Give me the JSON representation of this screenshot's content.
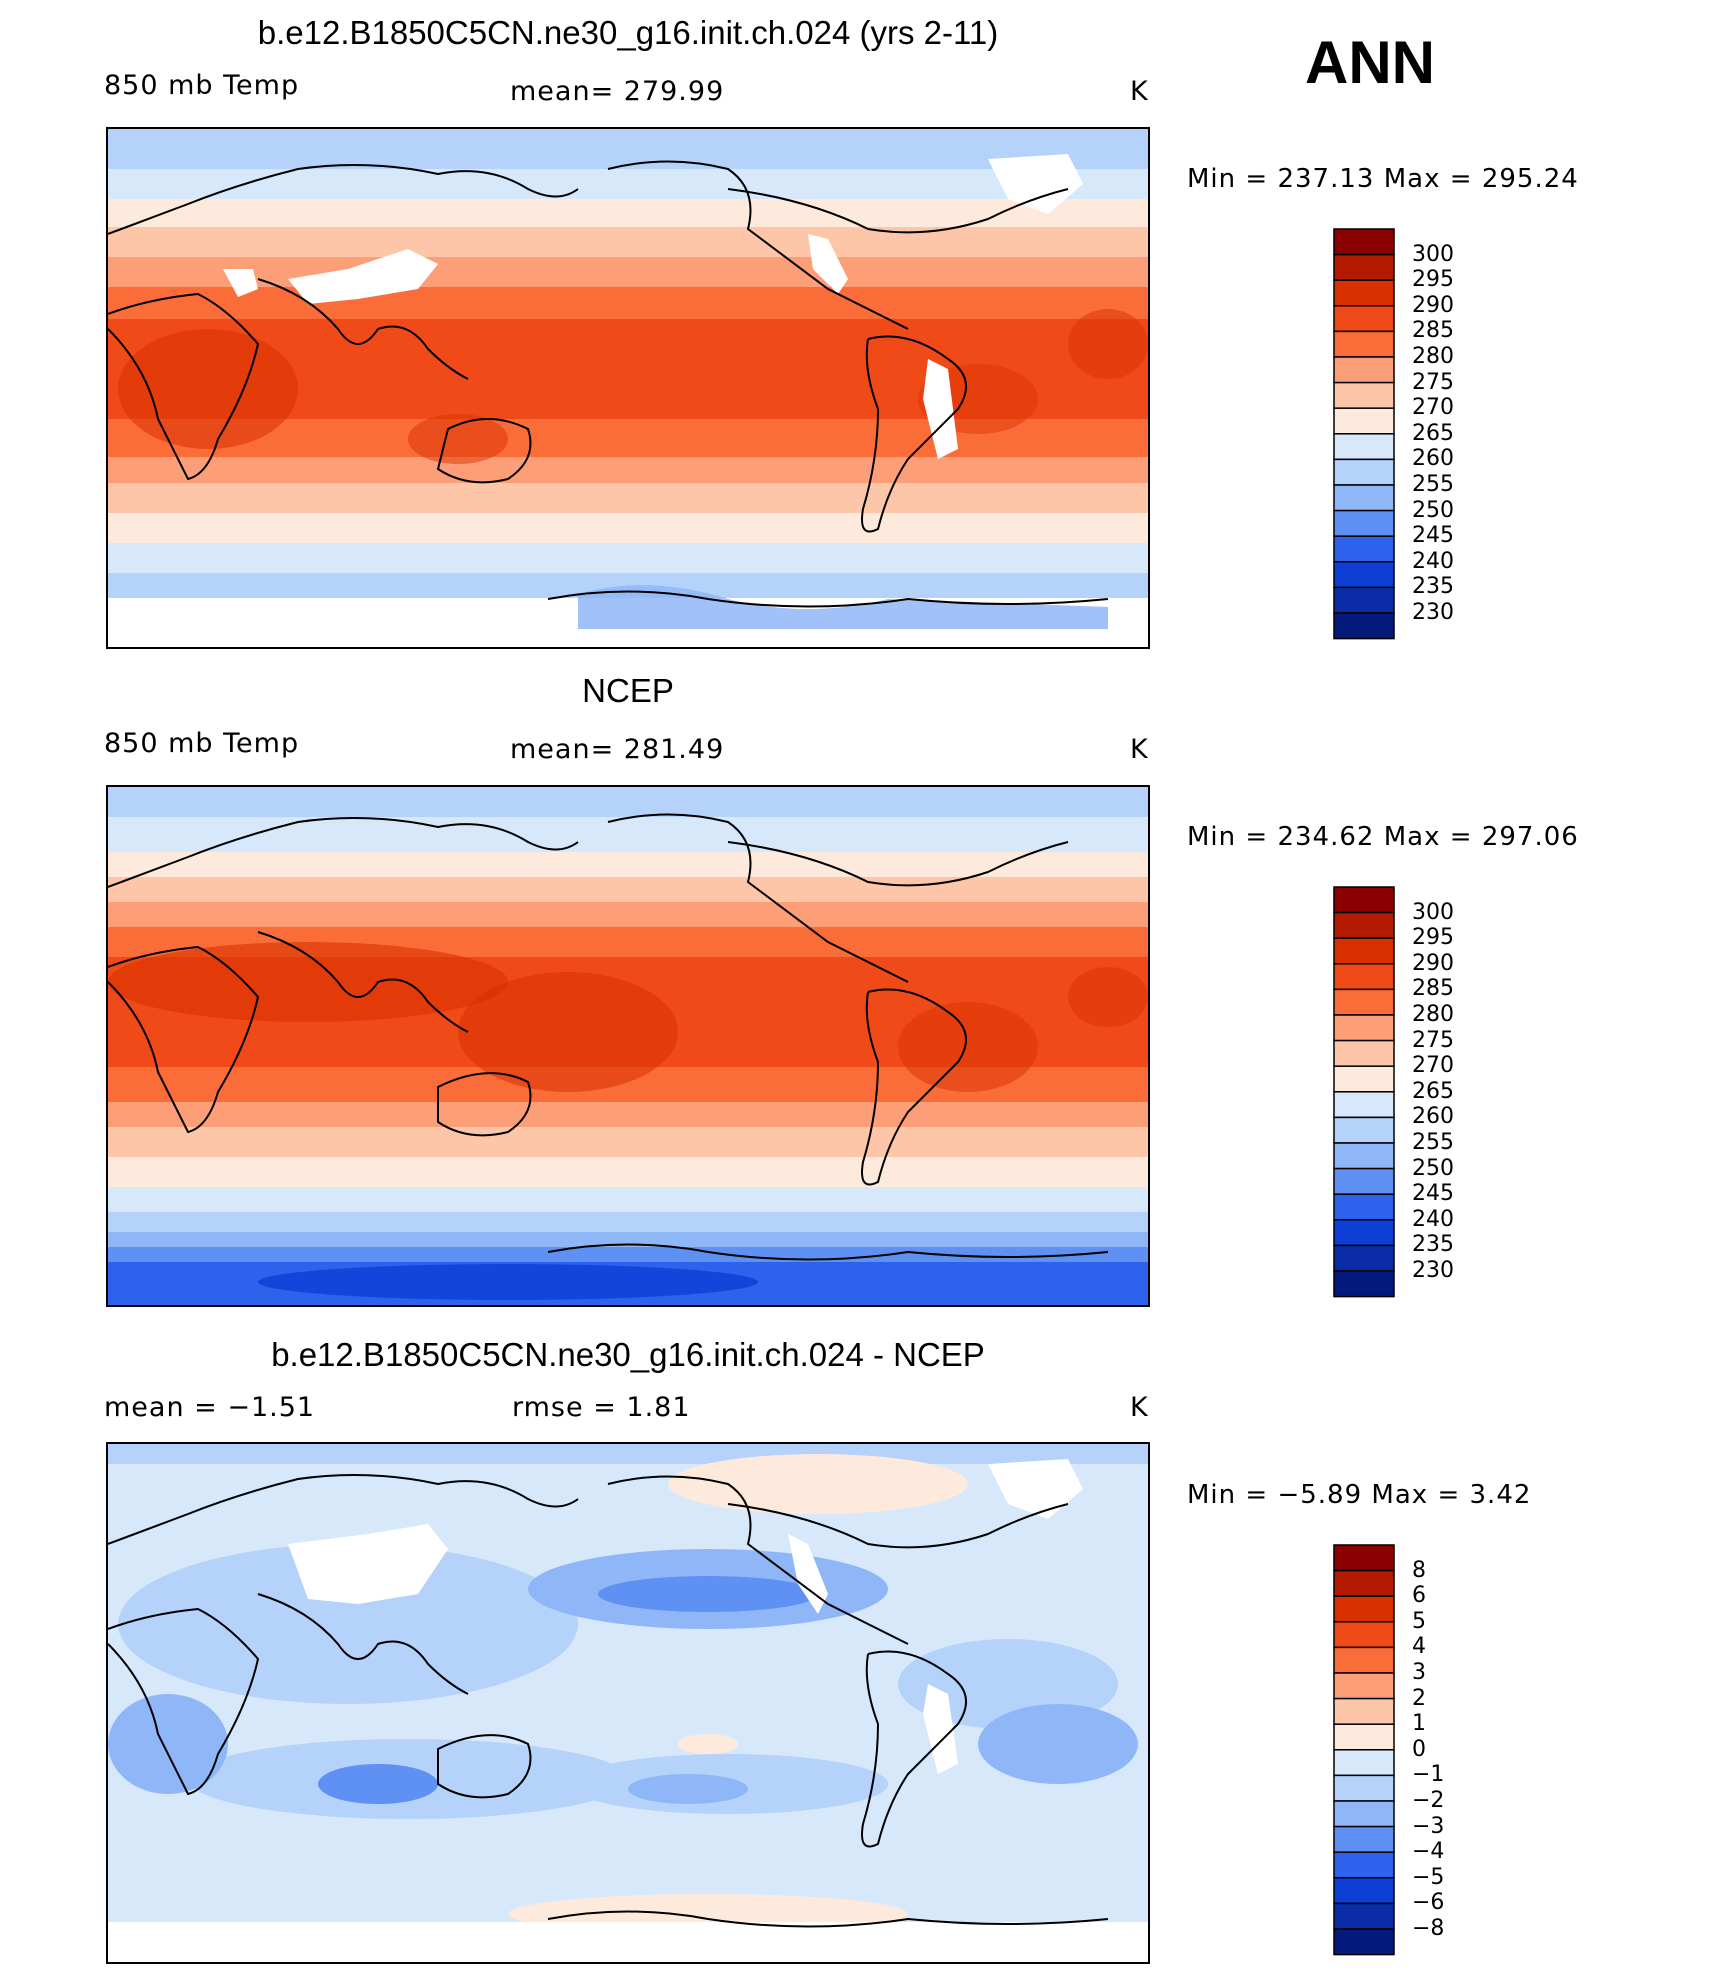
{
  "season": "ANN",
  "panels": [
    {
      "title": "b.e12.B1850C5CN.ne30_g16.init.ch.024 (yrs 2-11)",
      "left_label": "850 mb Temp",
      "center_label": "mean=  279.99",
      "units": "K",
      "min_label": "Min",
      "min_value": "237.13",
      "max_label": "Max",
      "max_value": "295.24",
      "colorbar_levels": [
        "300",
        "295",
        "290",
        "285",
        "280",
        "275",
        "270",
        "265",
        "260",
        "255",
        "250",
        "245",
        "240",
        "235",
        "230"
      ]
    },
    {
      "title": "NCEP",
      "left_label": "850 mb Temp",
      "center_label": "mean=  281.49",
      "units": "K",
      "min_label": "Min",
      "min_value": "234.62",
      "max_label": "Max",
      "max_value": "297.06",
      "colorbar_levels": [
        "300",
        "295",
        "290",
        "285",
        "280",
        "275",
        "270",
        "265",
        "260",
        "255",
        "250",
        "245",
        "240",
        "235",
        "230"
      ]
    },
    {
      "title": "b.e12.B1850C5CN.ne30_g16.init.ch.024 - NCEP",
      "left_label": "mean =    −1.51",
      "center_label": "rmse =     1.81",
      "units": "K",
      "min_label": "Min",
      "min_value": "−5.89",
      "max_label": "Max",
      "max_value": "3.42",
      "colorbar_levels": [
        "8",
        "6",
        "5",
        "4",
        "3",
        "2",
        "1",
        "0",
        "−1",
        "−2",
        "−3",
        "−4",
        "−5",
        "−6",
        "−8"
      ]
    }
  ],
  "colorbar_colors": [
    "#8b0000",
    "#b31a00",
    "#d93000",
    "#f04a18",
    "#fb6d38",
    "#fc9e78",
    "#fdc6a8",
    "#feeadc",
    "#d7e8fb",
    "#b4d2fa",
    "#8fb7f8",
    "#5f90f3",
    "#2d62ec",
    "#0d3fd6",
    "#0a2ca6",
    "#041a7a"
  ],
  "overlay_text": {
    "eq_label": "",
    "empty": ""
  }
}
